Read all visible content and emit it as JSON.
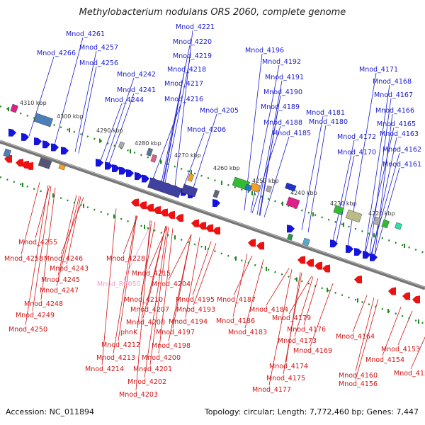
{
  "title": "Methylobacterium nodulans ORS 2060, complete genome",
  "footer": {
    "accession": "Accession: NC_011894",
    "summary": "Topology: circular; Length: 7,772,460 bp; Genes: 7,447"
  },
  "colors": {
    "forward": "#1414dd",
    "reverse": "#ee1111",
    "backbone": "#777777",
    "tick": "#228822",
    "top_label": "#1a1acc",
    "bottom_label": "#d01515",
    "pseudo_label": "#f59ac9"
  },
  "kbp_ticks": [
    "4310 kbp",
    "4300 kbp",
    "4290 kbp",
    "4280 kbp",
    "4270 kbp",
    "4260 kbp",
    "4250 kbp",
    "4240 kbp",
    "4230 kbp",
    "4220 kbp"
  ],
  "top_labels": [
    "Mnod_4261",
    "Mnod_4266",
    "Mnod_4257",
    "Mnod_4256",
    "Mnod_4242",
    "Mnod_4241",
    "Mnod_4244",
    "Mnod_4221",
    "Mnod_4220",
    "Mnod_4219",
    "Mnod_4218",
    "Mnod_4217",
    "Mnod_4216",
    "Mnod_4205",
    "Mnod_4206",
    "Mnod_4196",
    "Mnod_4192",
    "Mnod_4191",
    "Mnod_4190",
    "Mnod_4189",
    "Mnod_4188",
    "Mnod_4185",
    "Mnod_4181",
    "Mnod_4180",
    "Mnod_4171",
    "Mnod_4168",
    "Mnod_4167",
    "Mnod_4166",
    "Mnod_4165",
    "Mnod_4163",
    "Mnod_4172",
    "Mnod_4170",
    "Mnod_4162",
    "Mnod_4161"
  ],
  "bottom_labels": [
    "Mnod_4255",
    "Mnod_4258",
    "Mnod_4246",
    "Mnod_4243",
    "Mnod_4245",
    "Mnod_4247",
    "Mnod_4248",
    "Mnod_4249",
    "Mnod_4250",
    "Mnod_4228",
    "Mnod_4215",
    "Mnod_4204",
    "Mnod_4210",
    "Mnod_4207",
    "Mnod_4208",
    "phnK",
    "Mnod_4212",
    "Mnod_4213",
    "Mnod_4214",
    "Mnod_4195",
    "Mnod_4193",
    "Mnod_4194",
    "Mnod_4197",
    "Mnod_4198",
    "Mnod_4200",
    "Mnod_4201",
    "Mnod_4202",
    "Mnod_4203",
    "Mnod_4187",
    "Mnod_4184",
    "Mnod_4186",
    "Mnod_4183",
    "Mnod_4179",
    "Mnod_4176",
    "Mnod_4173",
    "Mnod_4169",
    "Mnod_4174",
    "Mnod_4175",
    "Mnod_4177",
    "Mnod_4164",
    "Mnod_4160",
    "Mnod_4156",
    "Mnod_4153",
    "Mnod_4154",
    "Mnod_4152"
  ],
  "pseudo_labels": [
    "Mnod_R0050"
  ]
}
